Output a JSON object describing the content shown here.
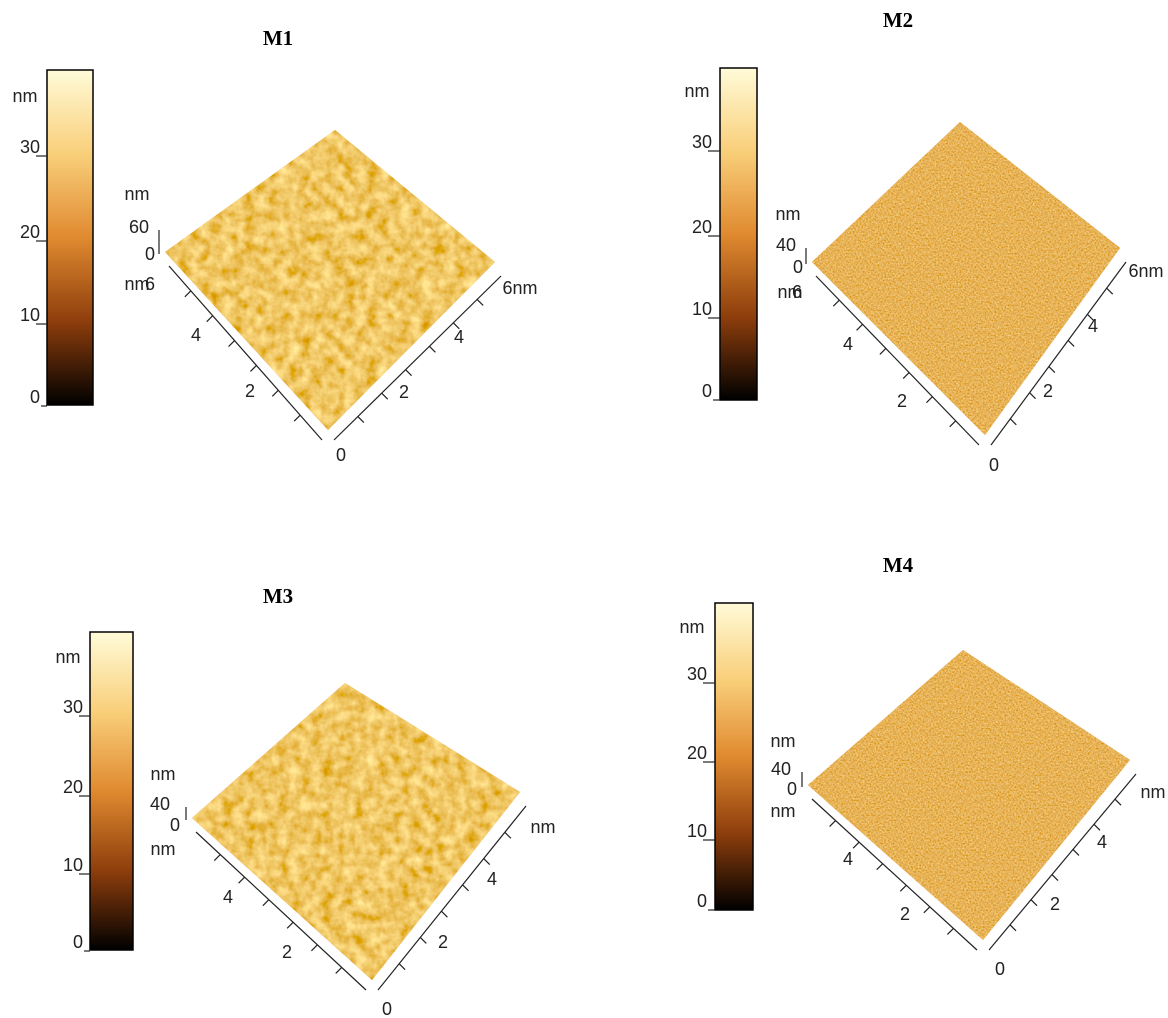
{
  "panels": [
    {
      "title": "M1",
      "colorbar": {
        "unit": "nm",
        "ticks": [
          "30",
          "20",
          "10",
          "0"
        ]
      },
      "z_axis": {
        "unit": "nm",
        "max": "60",
        "min": "0"
      },
      "left_axis": {
        "unit": "nm",
        "ticks": [
          "6",
          "4",
          "2"
        ]
      },
      "origin": "0",
      "right_axis": {
        "ticks": [
          "2",
          "4",
          "6nm"
        ]
      }
    },
    {
      "title": "M2",
      "colorbar": {
        "unit": "nm",
        "ticks": [
          "30",
          "20",
          "10",
          "0"
        ]
      },
      "z_axis": {
        "unit": "nm",
        "max": "40",
        "min": "0"
      },
      "left_axis": {
        "unit": "nm",
        "ticks": [
          "6",
          "4",
          "2"
        ]
      },
      "origin": "0",
      "right_axis": {
        "ticks": [
          "2",
          "4",
          "6nm"
        ]
      }
    },
    {
      "title": "M3",
      "colorbar": {
        "unit": "nm",
        "ticks": [
          "30",
          "20",
          "10",
          "0"
        ]
      },
      "z_axis": {
        "unit": "nm",
        "max": "40",
        "min": "0"
      },
      "left_axis": {
        "unit": "nm",
        "ticks": [
          "4",
          "2"
        ]
      },
      "origin": "0",
      "right_axis": {
        "ticks": [
          "2",
          "4",
          "nm"
        ]
      }
    },
    {
      "title": "M4",
      "colorbar": {
        "unit": "nm",
        "ticks": [
          "30",
          "20",
          "10",
          "0"
        ]
      },
      "z_axis": {
        "unit": "nm",
        "max": "40",
        "min": "0"
      },
      "left_axis": {
        "unit": "nm",
        "ticks": [
          "4",
          "2"
        ]
      },
      "origin": "0",
      "right_axis": {
        "ticks": [
          "2",
          "4",
          "nm"
        ]
      }
    }
  ]
}
